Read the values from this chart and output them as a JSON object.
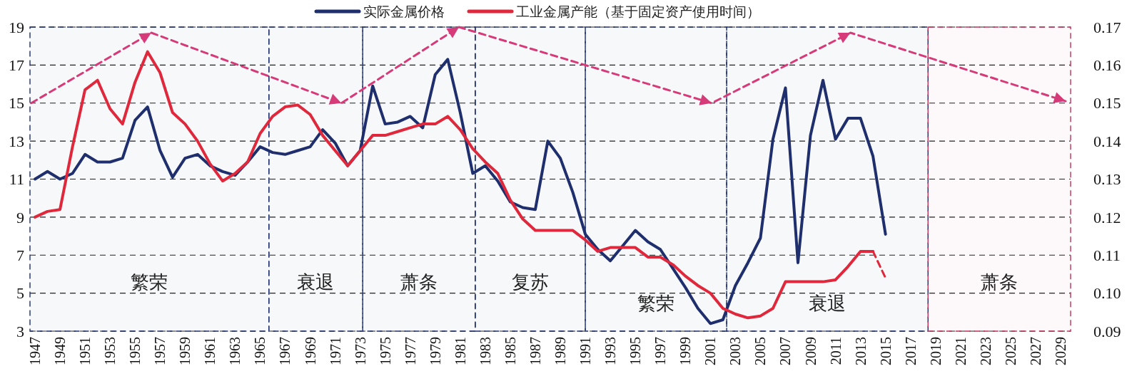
{
  "chart_data": {
    "type": "line",
    "legend": "top",
    "grid": "y",
    "line_style": "solid",
    "xlim": [
      1946.6,
      2029.8
    ],
    "xticks": [
      1947,
      1949,
      1951,
      1953,
      1955,
      1957,
      1959,
      1961,
      1963,
      1965,
      1967,
      1969,
      1971,
      1973,
      1975,
      1977,
      1979,
      1981,
      1983,
      1985,
      1987,
      1989,
      1991,
      1993,
      1995,
      1997,
      1999,
      2001,
      2003,
      2005,
      2007,
      2009,
      2011,
      2013,
      2015,
      2017,
      2019,
      2021,
      2023,
      2025,
      2027,
      2029
    ],
    "ylim": [
      3,
      19
    ],
    "yticks": [
      3,
      5,
      7,
      9,
      11,
      13,
      15,
      17,
      19
    ],
    "y2lim": [
      0.09,
      0.17
    ],
    "y2ticks": [
      0.09,
      {
        "value": 0.1,
        "label": "0.10"
      },
      0.11,
      0.12,
      0.13,
      0.14,
      0.15,
      0.16,
      0.17
    ],
    "series": [
      {
        "name": "实际金属价格",
        "color": "#1f2f6e",
        "x": [
          1947,
          1948,
          1949,
          1950,
          1951,
          1952,
          1953,
          1954,
          1955,
          1956,
          1957,
          1958,
          1959,
          1960,
          1961,
          1962,
          1963,
          1964,
          1965,
          1966,
          1967,
          1968,
          1969,
          1970,
          1971,
          1972,
          1973,
          1974,
          1975,
          1976,
          1977,
          1978,
          1979,
          1980,
          1981,
          1982,
          1983,
          1984,
          1985,
          1986,
          1987,
          1988,
          1989,
          1990,
          1991,
          1992,
          1993,
          1994,
          1995,
          1996,
          1997,
          1998,
          1999,
          2000,
          2001,
          2002,
          2003,
          2004,
          2005,
          2006,
          2007,
          2008,
          2009,
          2010,
          2011,
          2012,
          2013,
          2014,
          2015
        ],
        "values": [
          11.0,
          11.4,
          11.0,
          11.3,
          12.3,
          11.9,
          11.9,
          12.1,
          14.1,
          14.8,
          12.5,
          11.1,
          12.1,
          12.3,
          11.7,
          11.4,
          11.2,
          11.9,
          12.7,
          12.4,
          12.3,
          12.5,
          12.7,
          13.6,
          12.9,
          11.7,
          12.5,
          15.9,
          13.9,
          14.0,
          14.3,
          13.7,
          16.5,
          17.3,
          14.5,
          11.3,
          11.7,
          10.9,
          9.8,
          9.5,
          9.4,
          13.0,
          12.1,
          10.3,
          8.1,
          7.3,
          6.7,
          7.5,
          8.3,
          7.7,
          7.3,
          6.3,
          5.3,
          4.2,
          3.4,
          3.6,
          5.4,
          6.6,
          7.9,
          13.1,
          15.8,
          6.6,
          13.3,
          16.2,
          13.1,
          14.2,
          14.2,
          12.2,
          8.1
        ]
      },
      {
        "name": "工业金属产能（基于固定资产使用时间）",
        "color": "#e0283c",
        "axis": "y2",
        "x": [
          1947,
          1948,
          1949,
          1950,
          1951,
          1952,
          1953,
          1954,
          1955,
          1956,
          1957,
          1958,
          1959,
          1960,
          1961,
          1962,
          1963,
          1964,
          1965,
          1966,
          1967,
          1968,
          1969,
          1970,
          1971,
          1972,
          1973,
          1974,
          1975,
          1976,
          1977,
          1978,
          1979,
          1980,
          1981,
          1982,
          1983,
          1984,
          1985,
          1986,
          1987,
          1988,
          1989,
          1990,
          1991,
          1992,
          1993,
          1994,
          1995,
          1996,
          1997,
          1998,
          1999,
          2000,
          2001,
          2002,
          2003,
          2004,
          2005,
          2006,
          2007,
          2008,
          2009,
          2010,
          2011,
          2012,
          2013,
          2014
        ],
        "values": [
          0.12,
          0.1215,
          0.122,
          0.1385,
          0.1535,
          0.156,
          0.1485,
          0.1445,
          0.1555,
          0.1635,
          0.158,
          0.1475,
          0.1445,
          0.14,
          0.134,
          0.1295,
          0.1315,
          0.1345,
          0.142,
          0.1465,
          0.149,
          0.1495,
          0.147,
          0.1415,
          0.1375,
          0.1335,
          0.1375,
          0.1415,
          0.1415,
          0.1425,
          0.1435,
          0.1445,
          0.1445,
          0.1465,
          0.143,
          0.138,
          0.1345,
          0.1315,
          0.1245,
          0.1195,
          0.1165,
          0.1165,
          0.1165,
          0.1165,
          0.114,
          0.111,
          0.112,
          0.112,
          0.112,
          0.1095,
          0.1095,
          0.1075,
          0.1045,
          0.102,
          0.1,
          0.096,
          0.0945,
          0.0935,
          0.094,
          0.096,
          0.103,
          0.103,
          0.103,
          0.103,
          0.1035,
          0.107,
          0.111,
          0.111
        ]
      },
      {
        "color": "#e0283c",
        "axis": "y2",
        "line_style": "dashed",
        "x": [
          2014,
          2015
        ],
        "values": [
          0.111,
          0.104
        ]
      },
      {
        "type": "line",
        "color": "#d63a78",
        "line_style": "dashed",
        "x": [
          1946.7,
          1956.3,
          1971.5,
          1980.9,
          2001.1,
          2012.2,
          2029.4
        ],
        "values": [
          15.0,
          18.7,
          15.0,
          19.0,
          15.0,
          18.7,
          15.1
        ]
      }
    ],
    "bands": [
      {
        "axis": "x",
        "from": 1946.6,
        "to": 1965.7,
        "label": "繁荣",
        "color": "#1f2f6e"
      },
      {
        "axis": "x",
        "from": 1965.7,
        "to": 1973.2,
        "label": "衰退",
        "color": "#1f2f6e"
      },
      {
        "axis": "x",
        "from": 1973.2,
        "to": 1982.2,
        "label": "萧条",
        "color": "#1f2f6e"
      },
      {
        "axis": "x",
        "from": 1982.2,
        "to": 1991.0,
        "label": "复苏",
        "color": "#1f2f6e"
      },
      {
        "axis": "x",
        "from": 1991.0,
        "to": 2002.3,
        "label": "繁荣",
        "color": "#1f2f6e"
      },
      {
        "axis": "x",
        "from": 2002.3,
        "to": 2018.4,
        "label": "衰退",
        "color": "#1f2f6e"
      },
      {
        "axis": "x",
        "from": 2018.4,
        "to": 2029.8,
        "label": "萧条",
        "color": "#c0325a"
      }
    ]
  }
}
